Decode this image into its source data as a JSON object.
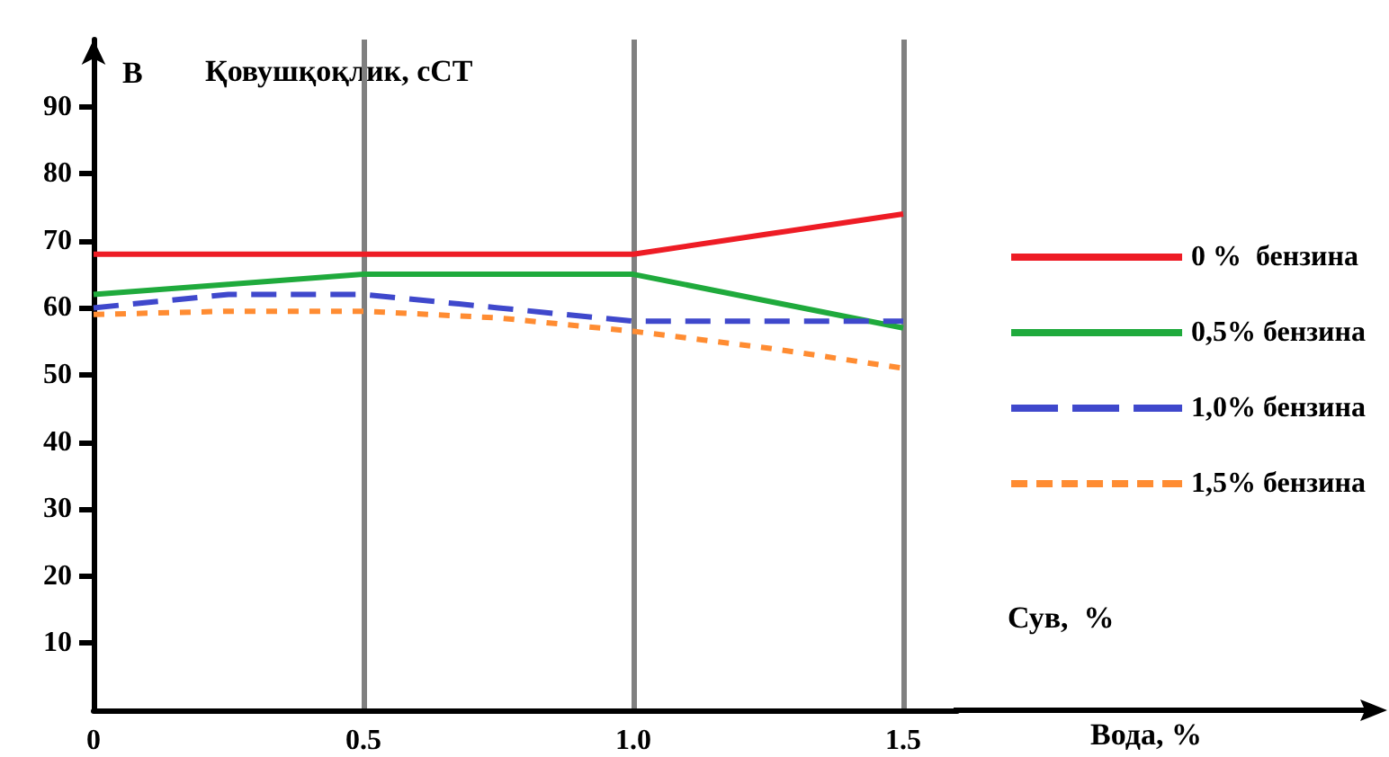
{
  "chart_data": {
    "type": "line",
    "ylabel": "Қовушқоқлик, сСТ",
    "xlabel": "Вода, %",
    "annotations": [
      "В",
      "Сув,  %"
    ],
    "x": [
      0,
      0.25,
      0.5,
      0.75,
      1.0,
      1.25,
      1.5
    ],
    "series": [
      {
        "name": "0 %  бензина",
        "color": "#ee1c25",
        "line_style": "solid",
        "values": [
          68,
          68,
          68,
          68,
          68,
          71,
          74
        ]
      },
      {
        "name": "0,5% бензина",
        "color": "#1faa3c",
        "line_style": "solid",
        "values": [
          62,
          63.5,
          65,
          65,
          65,
          61,
          57
        ]
      },
      {
        "name": "1,0% бензина",
        "color": "#3f48cc",
        "line_style": "dashed",
        "values": [
          60,
          62,
          62,
          60,
          58,
          58,
          58
        ]
      },
      {
        "name": "1,5% бензина",
        "color": "#ff8c32",
        "line_style": "dotted",
        "values": [
          59,
          59.5,
          59.5,
          58.5,
          56.5,
          54,
          51
        ]
      }
    ],
    "xlim": [
      0,
      1.6
    ],
    "xticks": [
      0,
      {
        "value": 0.5,
        "label": "0.5"
      },
      {
        "value": 1.0,
        "label": "1.0"
      },
      {
        "value": 1.5,
        "label": "1.5"
      }
    ],
    "ylim": [
      0,
      100
    ],
    "yticks": [
      10,
      20,
      30,
      40,
      50,
      60,
      70,
      80,
      90
    ],
    "grid": "x",
    "legend": "right",
    "marker": "none"
  }
}
